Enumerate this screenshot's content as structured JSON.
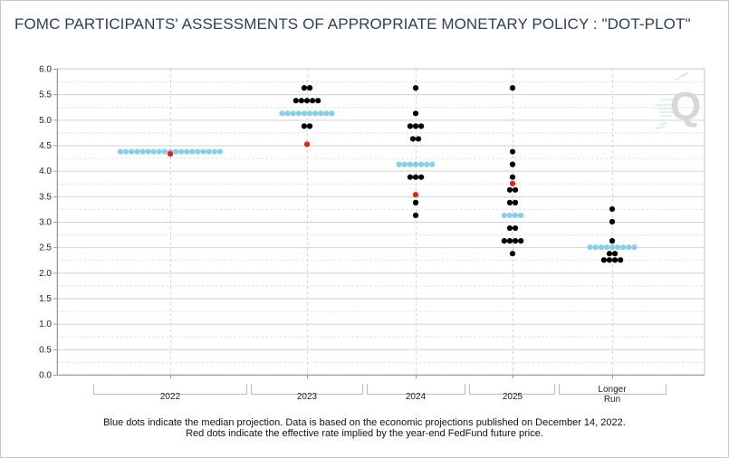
{
  "title": "FOMC PARTICIPANTS' ASSESSMENTS OF APPROPRIATE MONETARY POLICY : \"DOT-PLOT\"",
  "footnote": {
    "line1": "Blue dots indicate the median projection. Data is based on the economic projections published on December 14, 2022.",
    "line2": "Red dots indicate the effective rate implied by the year-end FedFund future price."
  },
  "colors": {
    "median": "#87ceeb",
    "participant": "#000000",
    "futures": "#e8201c",
    "grid": "#cfcfcf",
    "title": "#2e3f5c"
  },
  "logo": {
    "icon": "q-logo-icon",
    "letter": "Q"
  },
  "chart_data": {
    "type": "scatter",
    "title": "FOMC PARTICIPANTS' ASSESSMENTS OF APPROPRIATE MONETARY POLICY : \"DOT-PLOT\"",
    "xlabel": "",
    "ylabel": "",
    "ylim": [
      0,
      6
    ],
    "y_ticks": [
      "0.0",
      "0.5",
      "1.0",
      "1.5",
      "2.0",
      "2.5",
      "3.0",
      "3.5",
      "4.0",
      "4.5",
      "5.0",
      "5.5",
      "6.0"
    ],
    "grid": true,
    "categories": [
      {
        "label": "2022",
        "lines": [
          "2022"
        ]
      },
      {
        "label": "2023",
        "lines": [
          "2023"
        ]
      },
      {
        "label": "2024",
        "lines": [
          "2024"
        ]
      },
      {
        "label": "2025",
        "lines": [
          "2025"
        ]
      },
      {
        "label": "Longer Run",
        "lines": [
          "Longer",
          "Run"
        ]
      }
    ],
    "participants": [
      {
        "category": "2022",
        "dots": []
      },
      {
        "category": "2023",
        "dots": [
          {
            "rate": 5.625,
            "count": 2
          },
          {
            "rate": 5.375,
            "count": 5
          },
          {
            "rate": 4.875,
            "count": 2
          }
        ]
      },
      {
        "category": "2024",
        "dots": [
          {
            "rate": 5.625,
            "count": 1
          },
          {
            "rate": 5.125,
            "count": 1
          },
          {
            "rate": 4.875,
            "count": 3
          },
          {
            "rate": 4.625,
            "count": 2
          },
          {
            "rate": 3.875,
            "count": 3
          },
          {
            "rate": 3.375,
            "count": 1
          },
          {
            "rate": 3.125,
            "count": 1
          }
        ]
      },
      {
        "category": "2025",
        "dots": [
          {
            "rate": 5.625,
            "count": 1
          },
          {
            "rate": 4.375,
            "count": 1
          },
          {
            "rate": 4.125,
            "count": 1
          },
          {
            "rate": 3.875,
            "count": 1
          },
          {
            "rate": 3.625,
            "count": 2
          },
          {
            "rate": 3.375,
            "count": 2
          },
          {
            "rate": 2.875,
            "count": 2
          },
          {
            "rate": 2.625,
            "count": 4
          },
          {
            "rate": 2.375,
            "count": 1
          }
        ]
      },
      {
        "category": "Longer Run",
        "dots": [
          {
            "rate": 3.25,
            "count": 1
          },
          {
            "rate": 3.0,
            "count": 1
          },
          {
            "rate": 2.625,
            "count": 1
          },
          {
            "rate": 2.375,
            "count": 2
          },
          {
            "rate": 2.25,
            "count": 4
          }
        ]
      }
    ],
    "median": [
      {
        "category": "2022",
        "rate": 4.375,
        "count": 19
      },
      {
        "category": "2023",
        "rate": 5.125,
        "count": 10
      },
      {
        "category": "2024",
        "rate": 4.125,
        "count": 7
      },
      {
        "category": "2025",
        "rate": 3.125,
        "count": 4
      },
      {
        "category": "Longer Run",
        "rate": 2.5,
        "count": 9
      }
    ],
    "futures_implied": [
      {
        "category": "2022",
        "rate": 4.33
      },
      {
        "category": "2023",
        "rate": 4.52
      },
      {
        "category": "2024",
        "rate": 3.53
      },
      {
        "category": "2025",
        "rate": 3.75
      }
    ]
  }
}
